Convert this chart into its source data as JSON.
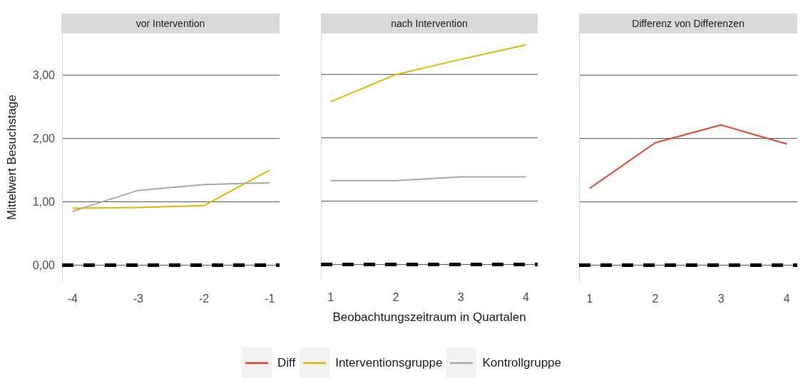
{
  "chart_data": [
    {
      "type": "line",
      "title": "vor Intervention",
      "ylabel": "Mittelwert Besuchstage",
      "x": [
        -4,
        -3,
        -2,
        -1
      ],
      "xlim": [
        -4.16,
        -0.85
      ],
      "xticks": [
        -4,
        -3,
        -2,
        -1
      ],
      "ylim": [
        -0.25,
        3.65
      ],
      "yticks": [
        {
          "value": 0,
          "label": "0,00"
        },
        {
          "value": 1,
          "label": "1,00"
        },
        {
          "value": 2,
          "label": "2,00"
        },
        {
          "value": 3,
          "label": "3,00"
        }
      ],
      "grid": "y",
      "legend": "bottom",
      "line_style": "solid",
      "marker": "none",
      "series": [
        {
          "name": "Interventionsgruppe",
          "color": "#e6b400",
          "values": [
            0.9,
            0.91,
            0.94,
            1.5
          ]
        },
        {
          "name": "Kontrollgruppe",
          "color": "#a6aaa9",
          "values": [
            0.85,
            1.18,
            1.27,
            1.3
          ]
        }
      ],
      "ref_lines": [
        {
          "axis": "y",
          "value": 0,
          "color": "#000000",
          "line_style": "dashed"
        }
      ]
    },
    {
      "type": "line",
      "title": "nach Intervention",
      "xlabel": "Beobachtungszeitraum in Quartalen",
      "x": [
        1,
        2,
        3,
        4
      ],
      "xlim": [
        0.85,
        4.18
      ],
      "xticks": [
        1,
        2,
        3,
        4
      ],
      "ylim": [
        -0.25,
        3.65
      ],
      "yticks": [
        {
          "value": 0,
          "label": null
        },
        {
          "value": 1,
          "label": null
        },
        {
          "value": 2,
          "label": null
        },
        {
          "value": 3,
          "label": null
        }
      ],
      "grid": "y",
      "legend": "bottom",
      "line_style": "solid",
      "marker": "none",
      "tick_labels": "x",
      "series": [
        {
          "name": "Interventionsgruppe",
          "color": "#e6b400",
          "values": [
            2.57,
            3.0,
            3.24,
            3.47
          ]
        },
        {
          "name": "Kontrollgruppe",
          "color": "#a6aaa9",
          "values": [
            1.32,
            1.32,
            1.38,
            1.38
          ]
        }
      ],
      "ref_lines": [
        {
          "axis": "y",
          "value": 0,
          "color": "#000000",
          "line_style": "dashed"
        }
      ]
    },
    {
      "type": "line",
      "title": "Differenz von Differenzen",
      "x": [
        1,
        2,
        3,
        4
      ],
      "xlim": [
        0.84,
        4.16
      ],
      "xticks": [
        1,
        2,
        3,
        4
      ],
      "ylim": [
        -0.25,
        3.65
      ],
      "yticks": [
        {
          "value": 0,
          "label": null
        },
        {
          "value": 1,
          "label": null
        },
        {
          "value": 2,
          "label": null
        },
        {
          "value": 3,
          "label": null
        }
      ],
      "grid": "y",
      "legend": "bottom",
      "line_style": "solid",
      "marker": "none",
      "tick_labels": "x",
      "series": [
        {
          "name": "Diff",
          "color": "#e8412c",
          "values": [
            1.21,
            1.93,
            2.21,
            1.91
          ]
        }
      ],
      "ref_lines": [
        {
          "axis": "y",
          "value": 0,
          "color": "#000000",
          "line_style": "dashed"
        }
      ]
    }
  ]
}
